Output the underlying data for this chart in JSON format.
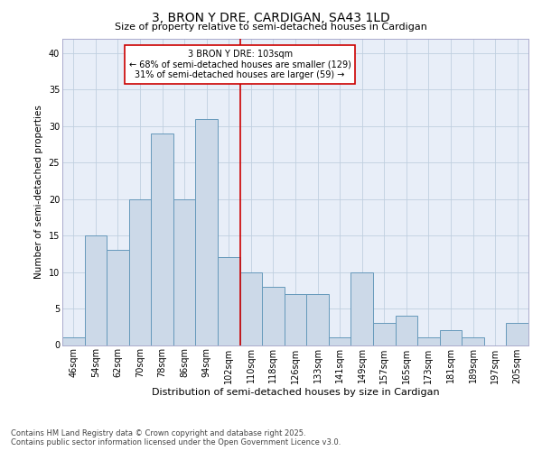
{
  "title1": "3, BRON Y DRE, CARDIGAN, SA43 1LD",
  "title2": "Size of property relative to semi-detached houses in Cardigan",
  "xlabel": "Distribution of semi-detached houses by size in Cardigan",
  "ylabel": "Number of semi-detached properties",
  "categories": [
    "46sqm",
    "54sqm",
    "62sqm",
    "70sqm",
    "78sqm",
    "86sqm",
    "94sqm",
    "102sqm",
    "110sqm",
    "118sqm",
    "126sqm",
    "133sqm",
    "141sqm",
    "149sqm",
    "157sqm",
    "165sqm",
    "173sqm",
    "181sqm",
    "189sqm",
    "197sqm",
    "205sqm"
  ],
  "values": [
    1,
    15,
    13,
    20,
    29,
    20,
    31,
    12,
    10,
    8,
    7,
    7,
    1,
    10,
    3,
    4,
    1,
    2,
    1,
    0,
    3
  ],
  "bar_color": "#ccd9e8",
  "bar_edgecolor": "#6699bb",
  "bar_linewidth": 0.7,
  "vline_color": "#cc0000",
  "vline_label": "3 BRON Y DRE: 103sqm",
  "annotation_line1": "← 68% of semi-detached houses are smaller (129)",
  "annotation_line2": "31% of semi-detached houses are larger (59) →",
  "annotation_box_edgecolor": "#cc0000",
  "annotation_box_facecolor": "white",
  "ylim": [
    0,
    42
  ],
  "yticks": [
    0,
    5,
    10,
    15,
    20,
    25,
    30,
    35,
    40
  ],
  "grid_color": "#c0cfe0",
  "background_color": "#e8eef8",
  "footer1": "Contains HM Land Registry data © Crown copyright and database right 2025.",
  "footer2": "Contains public sector information licensed under the Open Government Licence v3.0.",
  "title1_fontsize": 10,
  "title2_fontsize": 8,
  "xlabel_fontsize": 8,
  "ylabel_fontsize": 7.5,
  "tick_fontsize": 7,
  "annotation_fontsize": 7,
  "footer_fontsize": 6
}
